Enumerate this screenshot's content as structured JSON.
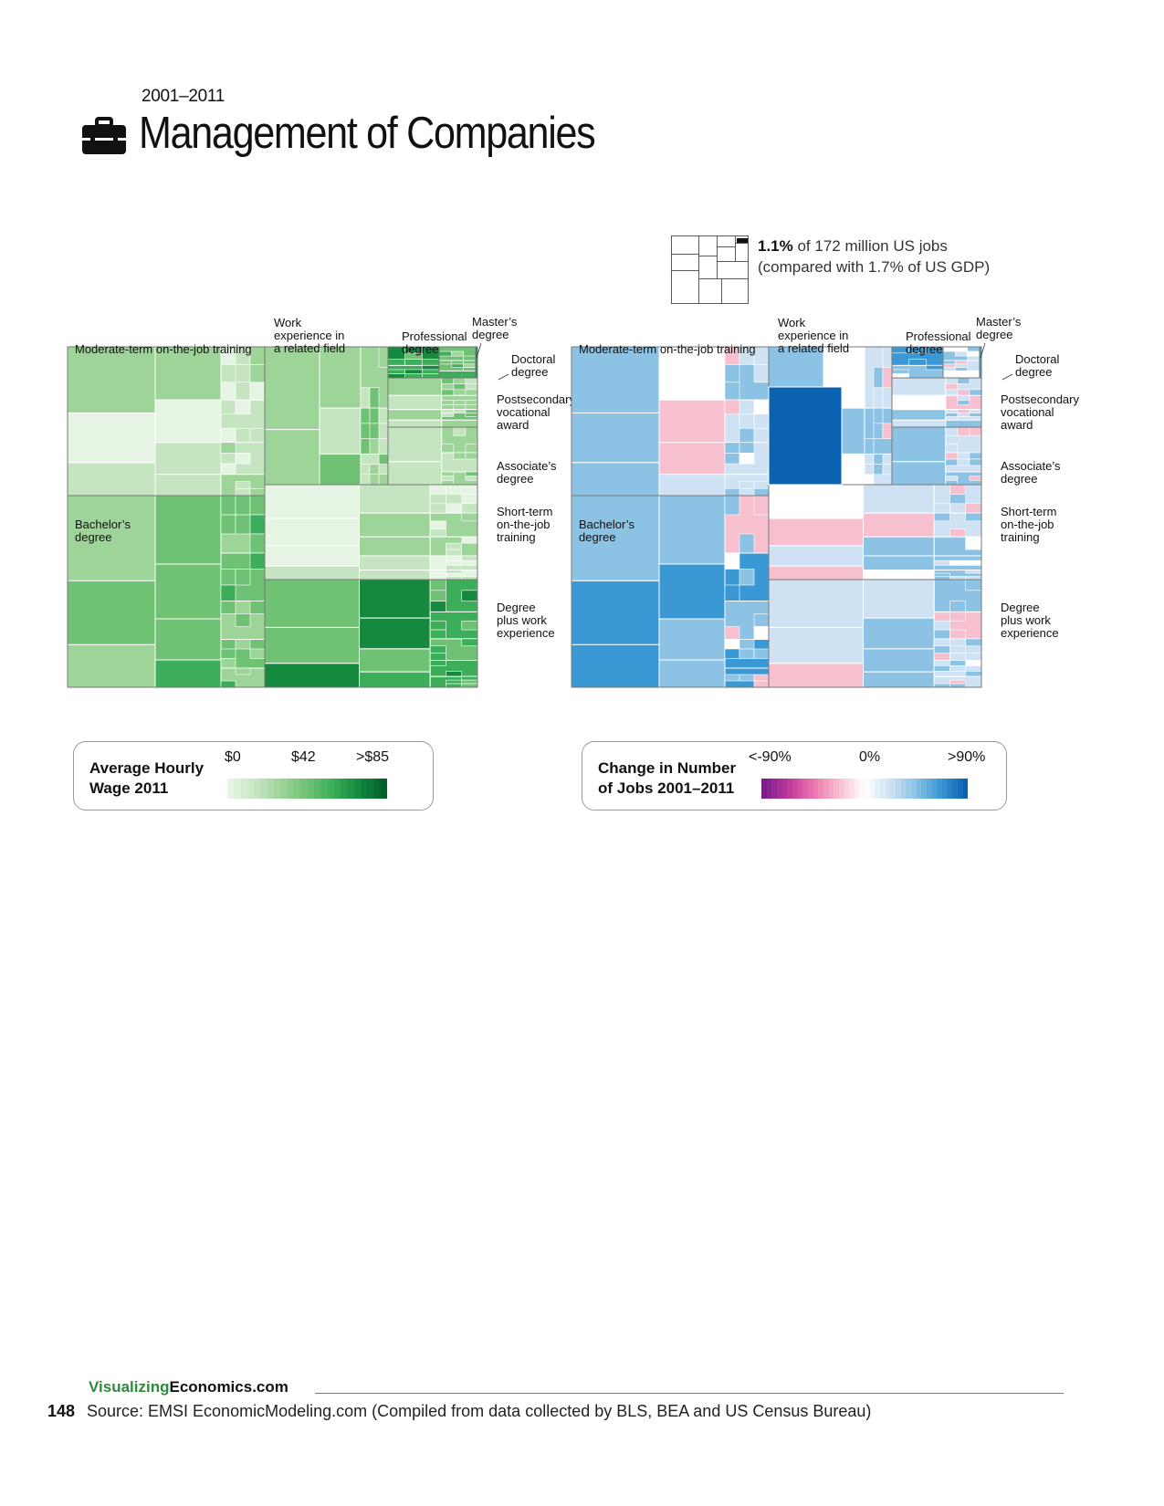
{
  "header": {
    "period": "2001–2011",
    "title": "Management of Companies",
    "icon": "briefcase-icon"
  },
  "share": {
    "percent": "1.1%",
    "text": " of 172 million US jobs",
    "compare": "(compared with 1.7% of US GDP)"
  },
  "chart_data": [
    {
      "type": "treemap",
      "name": "Average Hourly Wage 2011",
      "categories": [
        "Moderate-term on-the-job training",
        "Work experience in a related field",
        "Professional degree",
        "Master’s degree",
        "Doctoral degree",
        "Postsecondary vocational award",
        "Associate’s degree",
        "Short-term on-the-job training",
        "Bachelor’s degree",
        "Degree plus work experience"
      ],
      "color_scale": {
        "min_label": "$0",
        "mid_label": "$42",
        "max_label": ">$85",
        "min": 0,
        "mid": 42,
        "max": 85
      }
    },
    {
      "type": "treemap",
      "name": "Change in Number of Jobs 2001–2011",
      "categories": [
        "Moderate-term on-the-job training",
        "Work experience in a related field",
        "Professional degree",
        "Master’s degree",
        "Doctoral degree",
        "Postsecondary vocational award",
        "Associate’s degree",
        "Short-term on-the-job training",
        "Bachelor’s degree",
        "Degree plus work experience"
      ],
      "color_scale": {
        "min_label": "<-90%",
        "mid_label": "0%",
        "max_label": ">90%",
        "min": -90,
        "mid": 0,
        "max": 90
      }
    }
  ],
  "labels": {
    "moderate": "Moderate-term on-the-job training",
    "work1": "Work",
    "work2": "experience in",
    "work3": "a related field",
    "prof1": "Professional",
    "prof2": "degree",
    "masters1": "Master’s",
    "masters2": "degree",
    "doctoral1": "Doctoral",
    "doctoral2": "degree",
    "postsec1": "Postsecondary",
    "postsec2": "vocational",
    "postsec3": "award",
    "assoc1": "Associate’s",
    "assoc2": "degree",
    "short1": "Short-term",
    "short2": "on-the-job",
    "short3": "training",
    "bach1": "Bachelor’s",
    "bach2": "degree",
    "dpw1": "Degree",
    "dpw2": "plus work",
    "dpw3": "experience"
  },
  "legend_wage": {
    "title1": "Average Hourly",
    "title2": "Wage 2011",
    "t_min": "$0",
    "t_mid": "$42",
    "t_max": ">$85"
  },
  "legend_change": {
    "title1": "Change in Number",
    "title2": "of Jobs 2001–2011",
    "t_min": "<-90%",
    "t_mid": "0%",
    "t_max": ">90%"
  },
  "colors": {
    "green_scale": [
      "#e6f4e4",
      "#c5e5c0",
      "#9dd497",
      "#6fc274",
      "#3cae5a",
      "#158a3f",
      "#00602a"
    ],
    "diverge_scale": [
      "#7b1e8c",
      "#c03a9b",
      "#ee78b0",
      "#f7c0cf",
      "#ffffff",
      "#cfe2f4",
      "#8cc3e4",
      "#3a98d4",
      "#0b62b0"
    ],
    "accent_green": "#2e8b3e"
  },
  "footer": {
    "site_a": "Visualizing",
    "site_b": "Economics.com",
    "page": "148",
    "source": "Source: EMSI EconomicModeling.com (Compiled from data collected by BLS, BEA and US Census Bureau)"
  }
}
